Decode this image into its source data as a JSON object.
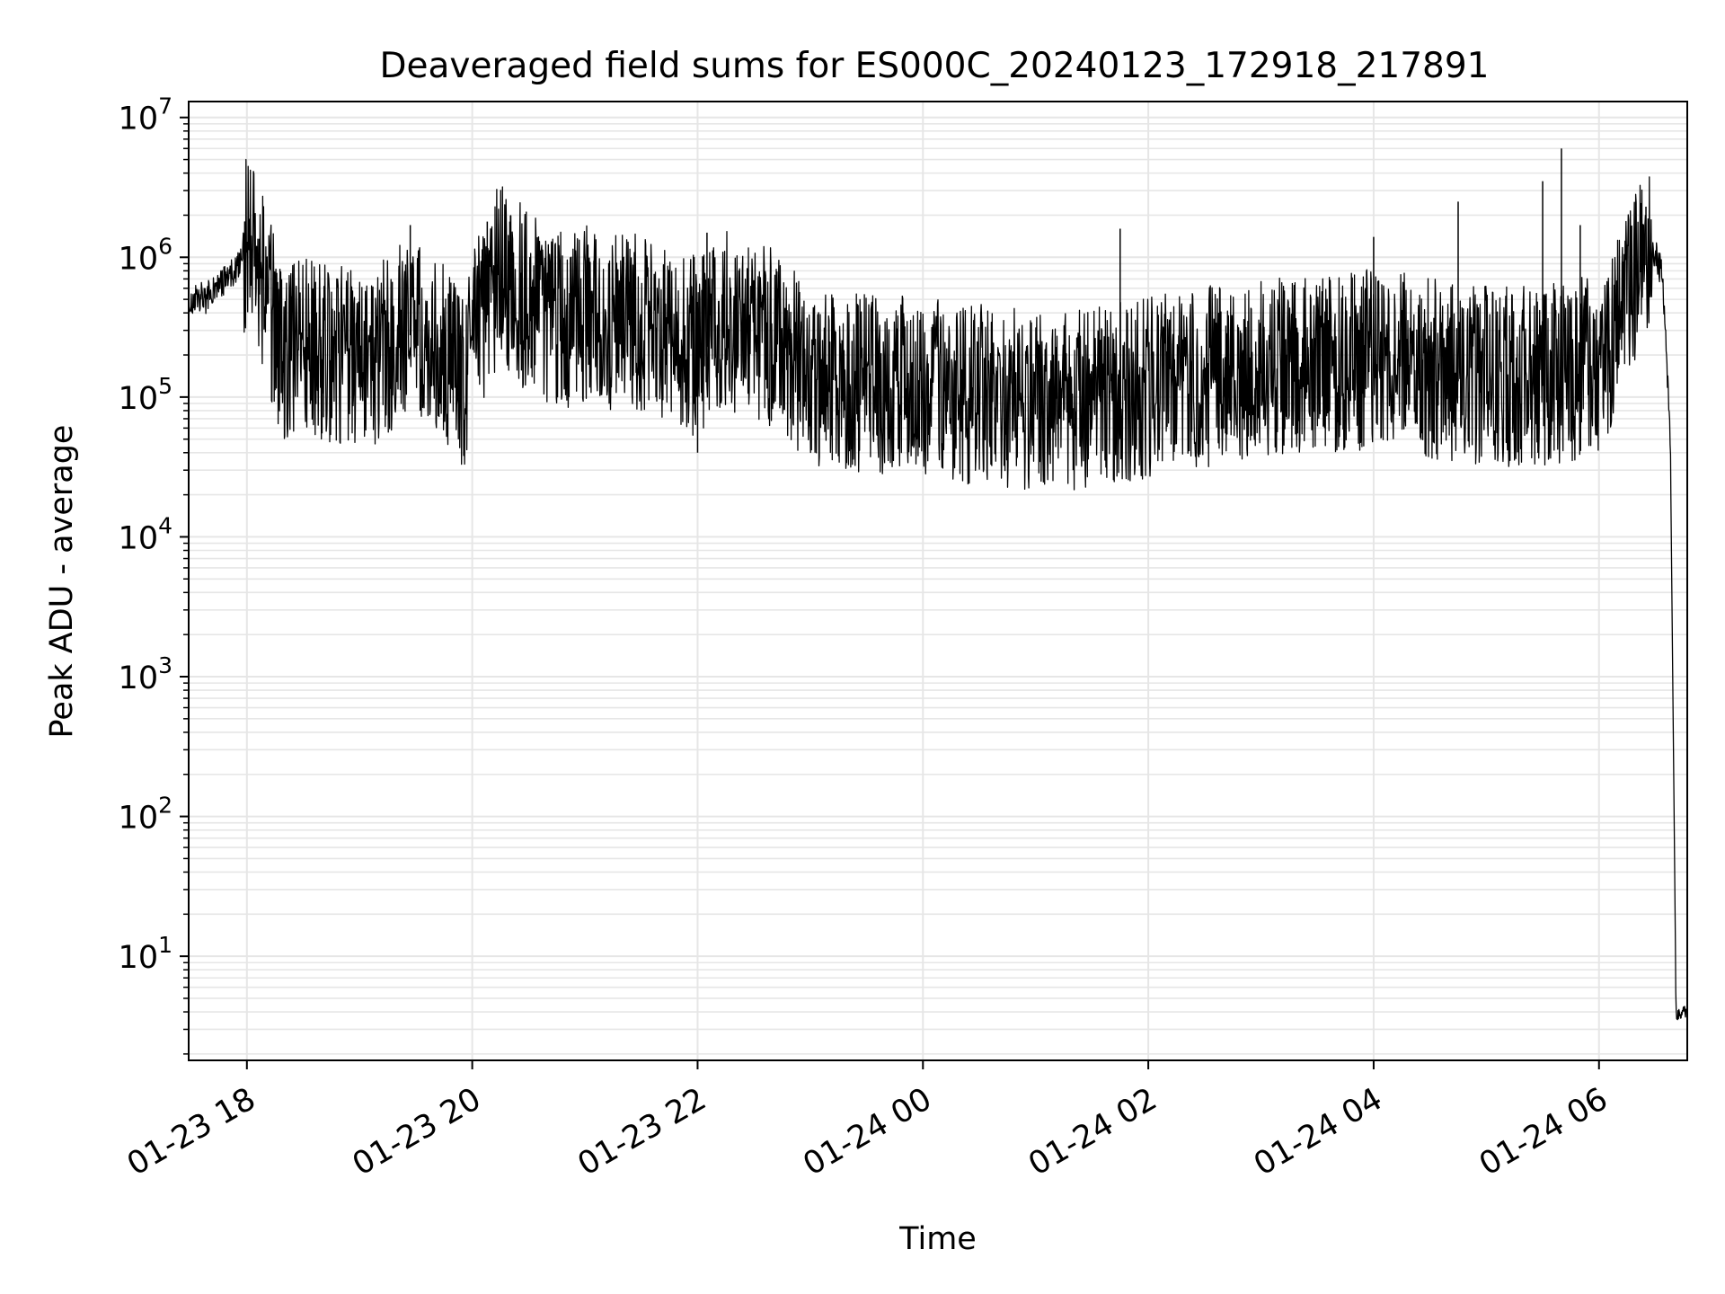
{
  "chart_data": {
    "type": "line",
    "title": "Deaveraged field sums for ES000C_20240123_172918_217891",
    "xlabel": "Time",
    "ylabel": "Peak ADU - average",
    "y_scale": "log",
    "ylim": [
      1.8,
      13000000
    ],
    "xlim": [
      "2024-01-23 17:29",
      "2024-01-24 06:47"
    ],
    "x_ticks": [
      {
        "value": "2024-01-23 18:00",
        "label": "01-23 18"
      },
      {
        "value": "2024-01-23 20:00",
        "label": "01-23 20"
      },
      {
        "value": "2024-01-23 22:00",
        "label": "01-23 22"
      },
      {
        "value": "2024-01-24 00:00",
        "label": "01-24 00"
      },
      {
        "value": "2024-01-24 02:00",
        "label": "01-24 02"
      },
      {
        "value": "2024-01-24 04:00",
        "label": "01-24 04"
      },
      {
        "value": "2024-01-24 06:00",
        "label": "01-24 06"
      }
    ],
    "y_ticks": [
      {
        "value": 10,
        "base": "10",
        "exp": "1"
      },
      {
        "value": 100,
        "base": "10",
        "exp": "2"
      },
      {
        "value": 1000,
        "base": "10",
        "exp": "3"
      },
      {
        "value": 10000,
        "base": "10",
        "exp": "4"
      },
      {
        "value": 100000,
        "base": "10",
        "exp": "5"
      },
      {
        "value": 1000000,
        "base": "10",
        "exp": "6"
      },
      {
        "value": 10000000,
        "base": "10",
        "exp": "7"
      }
    ],
    "grid": true,
    "line_color": "#000000",
    "grid_color": "#e6e6e6",
    "series": [
      {
        "points": [
          [
            "2024-01-23 17:29",
            400000
          ],
          [
            "2024-01-23 17:33",
            550000
          ],
          [
            "2024-01-23 17:38",
            500000
          ],
          [
            "2024-01-23 17:45",
            650000
          ],
          [
            "2024-01-23 17:50",
            700000
          ],
          [
            "2024-01-23 17:56",
            900000
          ],
          [
            "2024-01-23 18:00",
            1100000
          ],
          [
            "2024-01-23 18:05",
            800000
          ],
          [
            "2024-01-23 18:10",
            500000
          ],
          [
            "2024-01-23 18:15",
            250000
          ],
          [
            "2024-01-23 18:20",
            150000
          ],
          [
            "2024-01-23 18:30",
            200000
          ],
          [
            "2024-01-23 18:45",
            180000
          ],
          [
            "2024-01-23 19:00",
            150000
          ],
          [
            "2024-01-23 19:15",
            200000
          ],
          [
            "2024-01-23 19:30",
            300000
          ],
          [
            "2024-01-23 19:45",
            200000
          ],
          [
            "2024-01-23 19:55",
            100000
          ],
          [
            "2024-01-23 20:05",
            350000
          ],
          [
            "2024-01-23 20:15",
            700000
          ],
          [
            "2024-01-23 20:30",
            400000
          ],
          [
            "2024-01-23 20:45",
            300000
          ],
          [
            "2024-01-23 21:00",
            350000
          ],
          [
            "2024-01-23 21:15",
            300000
          ],
          [
            "2024-01-23 21:30",
            280000
          ],
          [
            "2024-01-23 21:45",
            220000
          ],
          [
            "2024-01-23 22:00",
            200000
          ],
          [
            "2024-01-23 22:15",
            300000
          ],
          [
            "2024-01-23 22:45",
            220000
          ],
          [
            "2024-01-23 23:00",
            120000
          ],
          [
            "2024-01-23 23:30",
            110000
          ],
          [
            "2024-01-24 00:00",
            100000
          ],
          [
            "2024-01-24 00:30",
            90000
          ],
          [
            "2024-01-24 01:00",
            80000
          ],
          [
            "2024-01-24 01:30",
            85000
          ],
          [
            "2024-01-24 02:00",
            100000
          ],
          [
            "2024-01-24 02:30",
            120000
          ],
          [
            "2024-01-24 03:00",
            140000
          ],
          [
            "2024-01-24 03:30",
            150000
          ],
          [
            "2024-01-24 04:00",
            160000
          ],
          [
            "2024-01-24 04:30",
            140000
          ],
          [
            "2024-01-24 05:00",
            120000
          ],
          [
            "2024-01-24 05:30",
            120000
          ],
          [
            "2024-01-24 06:00",
            150000
          ],
          [
            "2024-01-24 06:10",
            300000
          ],
          [
            "2024-01-24 06:20",
            700000
          ],
          [
            "2024-01-24 06:30",
            1100000
          ],
          [
            "2024-01-24 06:34",
            700000
          ],
          [
            "2024-01-24 06:38",
            50000
          ],
          [
            "2024-01-24 06:40",
            100
          ],
          [
            "2024-01-24 06:41",
            4
          ],
          [
            "2024-01-24 06:47",
            4
          ]
        ],
        "spikes": [
          [
            "2024-01-23 20:08",
            1800000
          ],
          [
            "2024-01-23 20:20",
            1800000
          ],
          [
            "2024-01-23 19:27",
            1700000
          ],
          [
            "2024-01-23 22:05",
            1500000
          ],
          [
            "2024-01-24 01:45",
            1600000
          ],
          [
            "2024-01-24 04:00",
            1400000
          ],
          [
            "2024-01-24 04:45",
            2500000
          ],
          [
            "2024-01-24 05:30",
            3500000
          ],
          [
            "2024-01-24 05:40",
            6000000
          ],
          [
            "2024-01-24 05:50",
            1700000
          ],
          [
            "2024-01-24 06:25",
            2300000
          ],
          [
            "2024-01-24 01:20",
            30000
          ],
          [
            "2024-01-23 22:00",
            40000
          ],
          [
            "2024-01-23 18:40",
            55000
          ]
        ]
      }
    ]
  }
}
